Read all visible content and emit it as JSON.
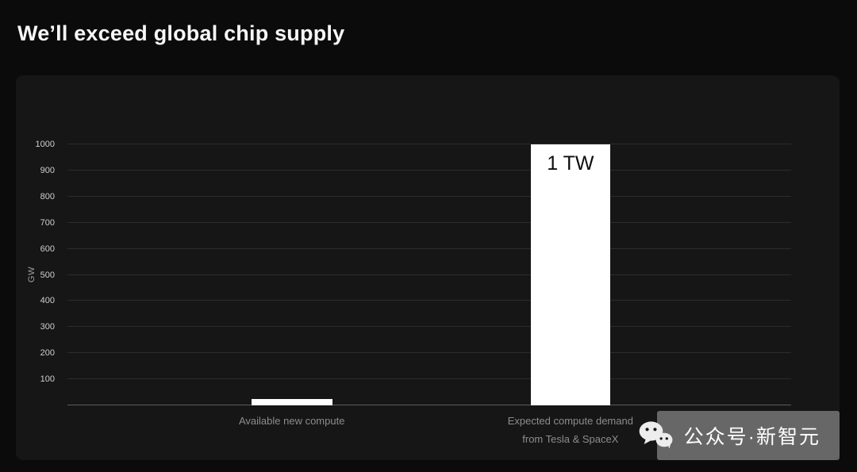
{
  "page": {
    "title": "We’ll exceed global chip supply"
  },
  "chart_data": {
    "type": "bar",
    "title": "We’ll exceed global chip supply",
    "xlabel": "",
    "ylabel": "GW",
    "ylim": [
      0,
      1000
    ],
    "yticks": [
      100,
      200,
      300,
      400,
      500,
      600,
      700,
      800,
      900,
      1000
    ],
    "grid": true,
    "legend": false,
    "bar_color": "#ffffff",
    "categories": [
      "Available new compute",
      "Expected compute demand from Tesla & SpaceX"
    ],
    "category_label_lines": [
      [
        "Available new compute"
      ],
      [
        "Expected compute demand",
        "from Tesla & SpaceX"
      ]
    ],
    "values": [
      25,
      1000
    ],
    "annotations": [
      "",
      "1 TW"
    ]
  },
  "watermark": {
    "icon": "wechat-icon",
    "text": "公众号·新智元"
  }
}
